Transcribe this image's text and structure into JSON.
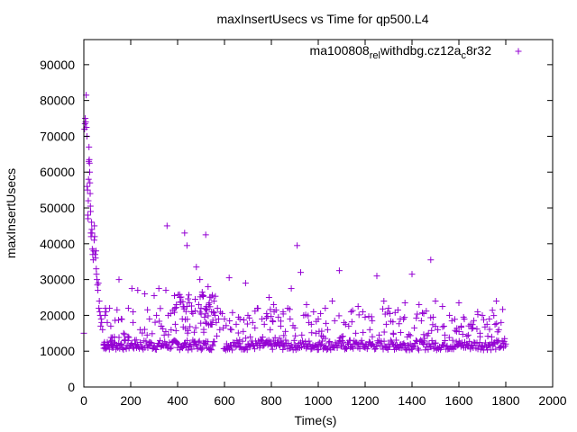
{
  "chart_data": {
    "type": "scatter",
    "title": "maxInsertUsecs vs Time for qp500.L4",
    "xlabel": "Time(s)",
    "ylabel": "maxInsertUsecs",
    "xlim": [
      0,
      2000
    ],
    "ylim": [
      0,
      97000
    ],
    "xticks": [
      0,
      200,
      400,
      600,
      800,
      1000,
      1200,
      1400,
      1600,
      1800,
      2000
    ],
    "yticks": [
      0,
      10000,
      20000,
      30000,
      40000,
      50000,
      60000,
      70000,
      80000,
      90000
    ],
    "grid": false,
    "legend_position": "top-right",
    "series": [
      {
        "name": "ma100808_rel_withdbg.cz12a_c8r32",
        "legend_parts": [
          "ma100808",
          "rel",
          "withdbg.cz12a",
          "c",
          "8r32"
        ],
        "color": "#9400d3",
        "marker": "plus",
        "points": [
          [
            0,
            15000
          ],
          [
            3,
            72000
          ],
          [
            5,
            73500
          ],
          [
            6,
            75000
          ],
          [
            8,
            74000
          ],
          [
            10,
            81500
          ],
          [
            11,
            72500
          ],
          [
            13,
            70000
          ],
          [
            14,
            56000
          ],
          [
            16,
            55000
          ],
          [
            17,
            48000
          ],
          [
            18,
            47000
          ],
          [
            19,
            52000
          ],
          [
            20,
            58000
          ],
          [
            21,
            63000
          ],
          [
            22,
            67000
          ],
          [
            23,
            63500
          ],
          [
            24,
            62500
          ],
          [
            25,
            60000
          ],
          [
            26,
            57000
          ],
          [
            27,
            54000
          ],
          [
            28,
            50500
          ],
          [
            29,
            49000
          ],
          [
            30,
            43000
          ],
          [
            31,
            42000
          ],
          [
            33,
            46000
          ],
          [
            34,
            44000
          ],
          [
            35,
            43000
          ],
          [
            36,
            38500
          ],
          [
            38,
            37000
          ],
          [
            40,
            35500
          ],
          [
            42,
            38000
          ],
          [
            44,
            41000
          ],
          [
            45,
            45000
          ],
          [
            46,
            42000
          ],
          [
            48,
            37000
          ],
          [
            50,
            36000
          ],
          [
            52,
            38000
          ],
          [
            53,
            33000
          ],
          [
            54,
            31500
          ],
          [
            56,
            30000
          ],
          [
            58,
            28500
          ],
          [
            60,
            27000
          ],
          [
            62,
            29000
          ],
          [
            64,
            22000
          ],
          [
            66,
            24000
          ],
          [
            68,
            21000
          ],
          [
            70,
            20000
          ],
          [
            72,
            17000
          ],
          [
            74,
            19000
          ],
          [
            76,
            18000
          ],
          [
            80,
            16000
          ],
          [
            85,
            10800
          ],
          [
            88,
            12500
          ],
          [
            90,
            20000
          ],
          [
            92,
            22000
          ],
          [
            95,
            21000
          ],
          [
            100,
            18000
          ],
          [
            105,
            11500
          ],
          [
            110,
            22000
          ],
          [
            115,
            17000
          ],
          [
            120,
            13000
          ],
          [
            125,
            11000
          ],
          [
            150,
            30000
          ],
          [
            160,
            19000
          ],
          [
            190,
            22000
          ],
          [
            205,
            27500
          ],
          [
            210,
            21000
          ],
          [
            230,
            27000
          ],
          [
            260,
            26000
          ],
          [
            280,
            19000
          ],
          [
            300,
            25500
          ],
          [
            310,
            20000
          ],
          [
            320,
            27500
          ],
          [
            350,
            27000
          ],
          [
            355,
            45000
          ],
          [
            370,
            20500
          ],
          [
            380,
            21500
          ],
          [
            395,
            23000
          ],
          [
            410,
            25000
          ],
          [
            430,
            43000
          ],
          [
            440,
            39500
          ],
          [
            450,
            23500
          ],
          [
            465,
            20500
          ],
          [
            480,
            33500
          ],
          [
            495,
            30000
          ],
          [
            505,
            26500
          ],
          [
            520,
            42500
          ],
          [
            530,
            28000
          ],
          [
            545,
            21000
          ],
          [
            560,
            20000
          ],
          [
            575,
            19000
          ],
          [
            595,
            16500
          ],
          [
            600,
            19000
          ],
          [
            620,
            30500
          ],
          [
            650,
            17500
          ],
          [
            690,
            29000
          ],
          [
            700,
            20000
          ],
          [
            720,
            18000
          ],
          [
            740,
            22000
          ],
          [
            760,
            19000
          ],
          [
            790,
            25000
          ],
          [
            810,
            23000
          ],
          [
            830,
            19500
          ],
          [
            850,
            21000
          ],
          [
            870,
            22000
          ],
          [
            885,
            27500
          ],
          [
            910,
            39500
          ],
          [
            925,
            32000
          ],
          [
            950,
            23000
          ],
          [
            980,
            21000
          ],
          [
            1000,
            19000
          ],
          [
            1030,
            22000
          ],
          [
            1060,
            24000
          ],
          [
            1090,
            32500
          ],
          [
            1110,
            18000
          ],
          [
            1140,
            21000
          ],
          [
            1170,
            22500
          ],
          [
            1200,
            19500
          ],
          [
            1230,
            18500
          ],
          [
            1250,
            31000
          ],
          [
            1280,
            24000
          ],
          [
            1300,
            22000
          ],
          [
            1340,
            21500
          ],
          [
            1370,
            23500
          ],
          [
            1400,
            31500
          ],
          [
            1430,
            23000
          ],
          [
            1450,
            20500
          ],
          [
            1480,
            35500
          ],
          [
            1500,
            24000
          ],
          [
            1530,
            22500
          ],
          [
            1560,
            20000
          ],
          [
            1600,
            23500
          ],
          [
            1620,
            19500
          ],
          [
            1650,
            17500
          ],
          [
            1680,
            21000
          ],
          [
            1700,
            20000
          ],
          [
            1730,
            19000
          ],
          [
            1760,
            24000
          ],
          [
            1780,
            18000
          ],
          [
            1800,
            12000
          ]
        ]
      }
    ],
    "background_points": [
      [
        85,
        12000
      ],
      [
        90,
        11000
      ],
      [
        100,
        12500
      ],
      [
        120,
        11000
      ],
      [
        140,
        11500
      ],
      [
        160,
        12000
      ],
      [
        180,
        11000
      ],
      [
        200,
        11500
      ],
      [
        220,
        12000
      ],
      [
        250,
        11000
      ],
      [
        280,
        12500
      ],
      [
        300,
        11500
      ],
      [
        350,
        12000
      ],
      [
        380,
        12500
      ],
      [
        400,
        11000
      ],
      [
        430,
        12000
      ],
      [
        450,
        11500
      ],
      [
        470,
        12500
      ],
      [
        500,
        11000
      ],
      [
        520,
        12000
      ],
      [
        550,
        11500
      ],
      [
        580,
        16000
      ],
      [
        610,
        11000
      ],
      [
        650,
        11500
      ],
      [
        700,
        12000
      ],
      [
        750,
        11000
      ],
      [
        800,
        11500
      ],
      [
        850,
        12000
      ],
      [
        900,
        11000
      ],
      [
        950,
        11500
      ],
      [
        1000,
        12000
      ],
      [
        1050,
        11000
      ],
      [
        1100,
        11500
      ],
      [
        1150,
        12000
      ],
      [
        1200,
        11000
      ],
      [
        1250,
        11500
      ],
      [
        1300,
        12000
      ],
      [
        1350,
        11000
      ],
      [
        1400,
        11500
      ],
      [
        1450,
        12000
      ],
      [
        1500,
        11000
      ],
      [
        1550,
        11500
      ],
      [
        1600,
        12000
      ],
      [
        1650,
        11000
      ],
      [
        1700,
        11500
      ],
      [
        1750,
        12000
      ],
      [
        1790,
        11000
      ],
      [
        130,
        14000
      ],
      [
        170,
        15000
      ],
      [
        210,
        18000
      ],
      [
        240,
        16000
      ],
      [
        270,
        14500
      ],
      [
        330,
        17000
      ],
      [
        360,
        20000
      ],
      [
        390,
        17500
      ],
      [
        420,
        19000
      ],
      [
        440,
        22500
      ],
      [
        460,
        21000
      ],
      [
        475,
        24500
      ],
      [
        490,
        23000
      ],
      [
        500,
        22000
      ],
      [
        510,
        25500
      ],
      [
        515,
        19500
      ],
      [
        525,
        21500
      ],
      [
        535,
        23500
      ],
      [
        540,
        17500
      ],
      [
        555,
        24000
      ],
      [
        565,
        18000
      ],
      [
        570,
        22000
      ],
      [
        590,
        20500
      ],
      [
        630,
        16000
      ],
      [
        660,
        19500
      ],
      [
        680,
        15500
      ],
      [
        710,
        14000
      ],
      [
        730,
        16500
      ],
      [
        770,
        17500
      ],
      [
        780,
        20500
      ],
      [
        795,
        16000
      ],
      [
        805,
        18500
      ],
      [
        820,
        21500
      ],
      [
        840,
        17000
      ],
      [
        860,
        15500
      ],
      [
        880,
        19000
      ],
      [
        900,
        16500
      ],
      [
        930,
        14500
      ],
      [
        960,
        18000
      ],
      [
        990,
        15000
      ],
      [
        1010,
        20500
      ],
      [
        1040,
        16000
      ],
      [
        1070,
        18500
      ],
      [
        1100,
        14000
      ],
      [
        1130,
        17000
      ],
      [
        1160,
        15000
      ],
      [
        1190,
        21000
      ],
      [
        1220,
        16000
      ],
      [
        1260,
        14500
      ],
      [
        1290,
        17500
      ],
      [
        1320,
        15000
      ],
      [
        1350,
        19000
      ],
      [
        1380,
        14000
      ],
      [
        1410,
        16500
      ],
      [
        1440,
        18500
      ],
      [
        1470,
        15000
      ],
      [
        1490,
        19500
      ],
      [
        1510,
        16000
      ],
      [
        1540,
        14500
      ],
      [
        1570,
        18500
      ],
      [
        1590,
        15500
      ],
      [
        1610,
        17000
      ],
      [
        1640,
        14500
      ],
      [
        1660,
        16500
      ],
      [
        1690,
        15000
      ],
      [
        1720,
        17500
      ],
      [
        1740,
        14000
      ],
      [
        1770,
        16000
      ],
      [
        1795,
        13500
      ]
    ]
  }
}
